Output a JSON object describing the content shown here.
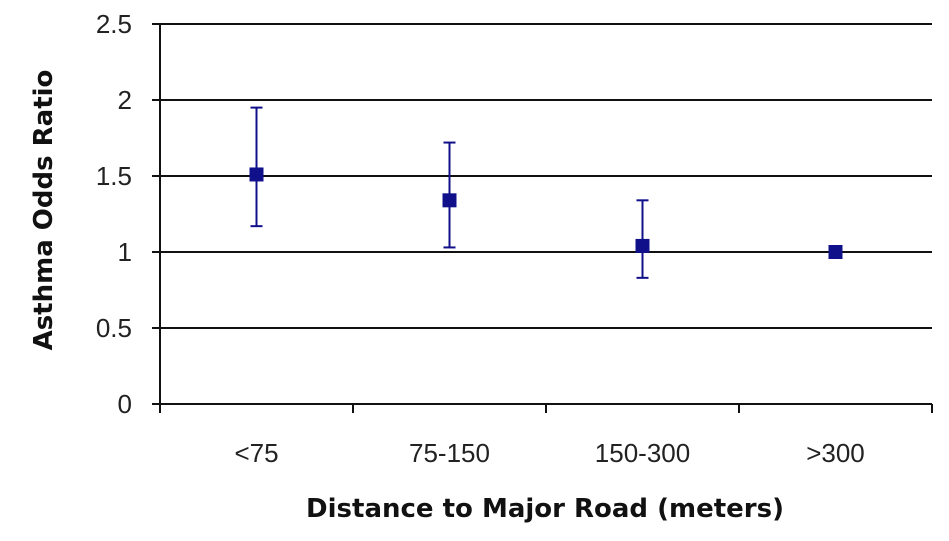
{
  "chart_data": {
    "type": "scatter",
    "title": "",
    "xlabel": "Distance to Major Road (meters)",
    "ylabel": "Asthma Odds Ratio",
    "categories": [
      "<75",
      "75-150",
      "150-300",
      ">300"
    ],
    "series": [
      {
        "values": [
          1.51,
          1.34,
          1.04,
          1.0
        ],
        "lower": [
          1.17,
          1.03,
          0.83,
          null
        ],
        "upper": [
          1.95,
          1.72,
          1.34,
          null
        ]
      }
    ],
    "ylim": [
      0,
      2.5
    ],
    "yticks": [
      0,
      0.5,
      1,
      1.5,
      2,
      2.5
    ],
    "ytick_labels": [
      "0",
      "0.5",
      "1",
      "1.5",
      "2",
      "2.5"
    ],
    "grid": true,
    "legend": "none",
    "colors": {
      "marker": "#10108a",
      "axis": "#111111",
      "text": "#222222"
    }
  }
}
